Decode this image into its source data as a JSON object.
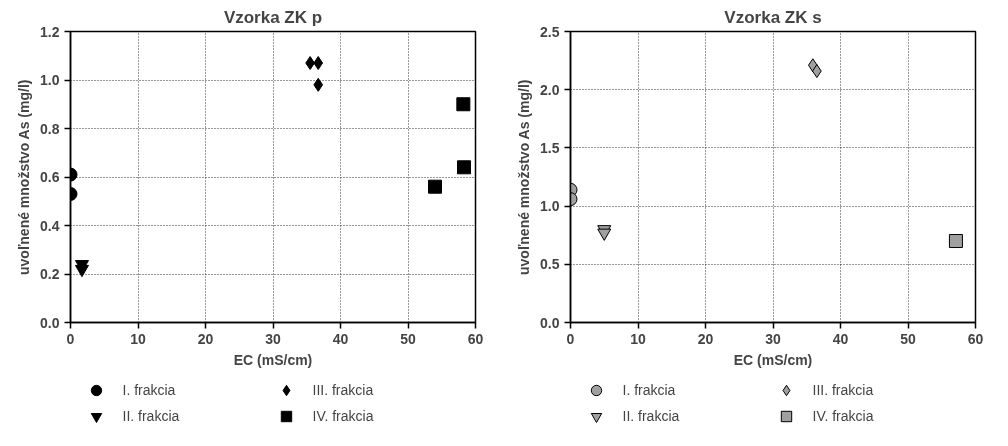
{
  "chart_data": [
    {
      "type": "scatter",
      "title": "Vzorka ZK p",
      "xlabel": "EC (mS/cm)",
      "ylabel": "uvoľnené množstvo As (mg/l)",
      "xlim": [
        0,
        60
      ],
      "ylim": [
        0,
        1.2
      ],
      "xticks": [
        0,
        10,
        20,
        30,
        40,
        50,
        60
      ],
      "yticks": [
        {
          "value": 0,
          "label": "0.0"
        },
        0.2,
        0.4,
        0.6,
        0.8,
        {
          "value": 1,
          "label": "1.0"
        },
        1.2
      ],
      "grid": true,
      "legend": "bottom",
      "series": [
        {
          "name": "I. frakcia",
          "color": "#000000",
          "marker": "circle",
          "x": [
            0,
            0
          ],
          "values": [
            0.61,
            0.53
          ]
        },
        {
          "name": "II. frakcia",
          "color": "#000000",
          "marker": "triangle",
          "x": [
            1.7,
            1.7
          ],
          "values": [
            0.24,
            0.22
          ]
        },
        {
          "name": "III. frakcia",
          "color": "#000000",
          "marker": "diamond",
          "x": [
            35.5,
            36.7,
            36.7
          ],
          "values": [
            1.07,
            1.07,
            0.98
          ]
        },
        {
          "name": "IV. frakcia",
          "color": "#000000",
          "marker": "square",
          "x": [
            54.0,
            58.2,
            58.3
          ],
          "values": [
            0.56,
            0.9,
            0.64
          ]
        }
      ]
    },
    {
      "type": "scatter",
      "title": "Vzorka ZK s",
      "xlabel": "EC (mS/cm)",
      "ylabel": "uvoľnené množstvo As (mg/l)",
      "xlim": [
        0,
        60
      ],
      "ylim": [
        0,
        2.5
      ],
      "xticks": [
        0,
        10,
        20,
        30,
        40,
        50,
        60
      ],
      "yticks": [
        {
          "value": 0,
          "label": "0.0"
        },
        0.5,
        {
          "value": 1,
          "label": "1.0"
        },
        1.5,
        {
          "value": 2,
          "label": "2.0"
        },
        2.5
      ],
      "grid": true,
      "legend": "bottom",
      "series": [
        {
          "name": "I. frakcia",
          "color": "#a0a0a0",
          "marker": "circle",
          "x": [
            0,
            0
          ],
          "values": [
            1.14,
            1.06
          ]
        },
        {
          "name": "II. frakcia",
          "color": "#a0a0a0",
          "marker": "triangle",
          "x": [
            5.0,
            5.0
          ],
          "values": [
            0.8,
            0.77
          ]
        },
        {
          "name": "III. frakcia",
          "color": "#a0a0a0",
          "marker": "diamond",
          "x": [
            35.9,
            36.5
          ],
          "values": [
            2.21,
            2.16
          ]
        },
        {
          "name": "IV. frakcia",
          "color": "#a0a0a0",
          "marker": "square",
          "x": [
            57.1
          ],
          "values": [
            0.7
          ]
        }
      ]
    }
  ]
}
